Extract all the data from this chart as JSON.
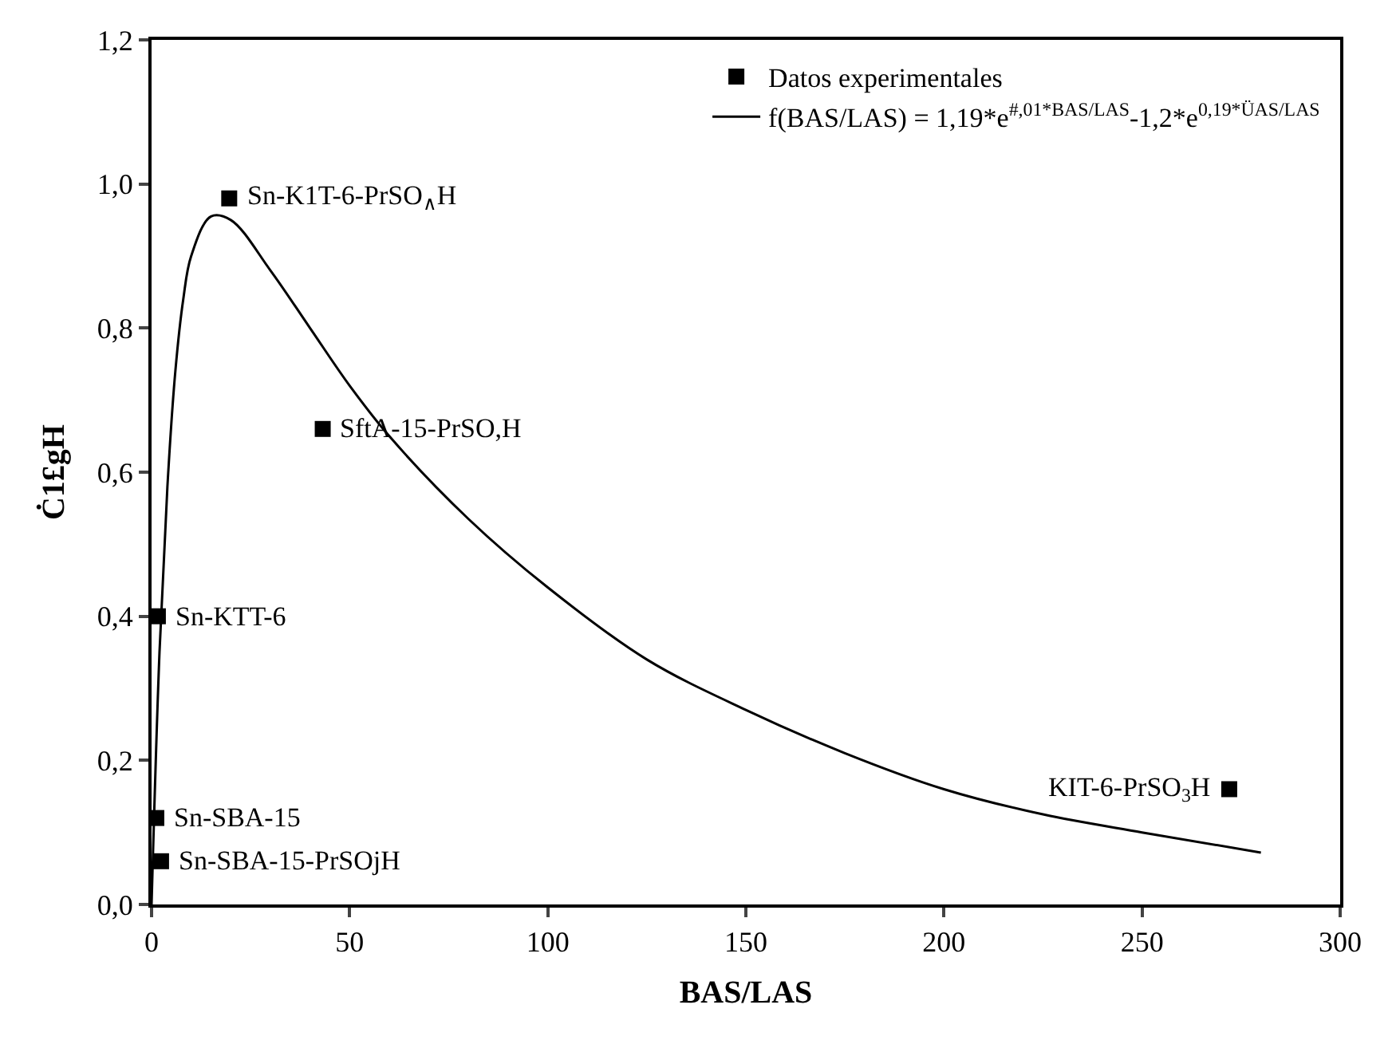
{
  "chart_data": {
    "type": "scatter",
    "xlabel": "BAS/LAS",
    "ylabel": "Ċ1£gH",
    "series": [
      {
        "name": "Datos experimentales",
        "color": "#000000",
        "marker": "square",
        "x": [
          1.6,
          1.2,
          2.4,
          19.6,
          43.2,
          272
        ],
        "values": [
          0.4,
          0.12,
          0.06,
          0.98,
          0.66,
          0.16
        ]
      },
      {
        "name": "f(BAS/LAS) = 1,19*e$^{#,01*BAS/LAS}$-1,2*e$^{0,19*ÜAS/LAS}$",
        "type": "line",
        "color": "#000000",
        "marker": "none",
        "line_style": "solid",
        "x": [
          0,
          2,
          4,
          6,
          8,
          10,
          15,
          20,
          30,
          40,
          50,
          60,
          80,
          100,
          125,
          150,
          175,
          200,
          225,
          250,
          280
        ],
        "values": [
          0,
          0.35,
          0.58,
          0.74,
          0.84,
          0.9,
          0.955,
          0.95,
          0.88,
          0.8,
          0.72,
          0.65,
          0.535,
          0.44,
          0.34,
          0.27,
          0.21,
          0.16,
          0.125,
          0.1,
          0.072
        ]
      }
    ],
    "annotations": [
      {
        "text": "Sn-KTT-6",
        "x": 1.6,
        "y": 0.4
      },
      {
        "text": "Sn-SBA-15",
        "x": 1.2,
        "y": 0.12
      },
      {
        "text": "Sn-SBA-15-PrSOjH",
        "x": 2.4,
        "y": 0.06
      },
      {
        "text": "Sn-K1T-6-PrSO$_{∧}$H",
        "x": 19.6,
        "y": 0.98
      },
      {
        "text": "SftA-15-PrSO,H",
        "x": 43.2,
        "y": 0.66
      },
      {
        "text": "KIT-6-PrSO$_{3}$H",
        "x": 272,
        "y": 0.16
      }
    ],
    "xlim": [
      0,
      300
    ],
    "xticks": [
      0,
      50,
      100,
      150,
      200,
      250,
      300
    ],
    "ylim": [
      0,
      1.2
    ],
    "yticks": [
      {
        "value": 0,
        "label": "0,0"
      },
      {
        "value": 0.2,
        "label": "0,2"
      },
      {
        "value": 0.4,
        "label": "0,4"
      },
      {
        "value": 0.6,
        "label": "0,6"
      },
      {
        "value": 0.8,
        "label": "0,8"
      },
      {
        "value": 1.0,
        "label": "1,0"
      },
      {
        "value": 1.2,
        "label": "1,2"
      }
    ],
    "grid": false,
    "legend": "top right"
  }
}
